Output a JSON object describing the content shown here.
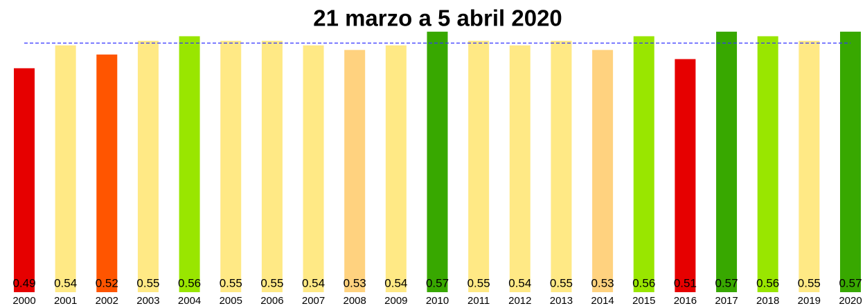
{
  "chart_data": {
    "type": "bar",
    "title": "21 marzo a 5 abril 2020",
    "categories": [
      "2000",
      "2001",
      "2002",
      "2003",
      "2004",
      "2005",
      "2006",
      "2007",
      "2008",
      "2009",
      "2010",
      "2011",
      "2012",
      "2013",
      "2014",
      "2015",
      "2016",
      "2017",
      "2018",
      "2019",
      "2020"
    ],
    "values": [
      0.49,
      0.54,
      0.52,
      0.55,
      0.56,
      0.55,
      0.55,
      0.54,
      0.53,
      0.54,
      0.57,
      0.55,
      0.54,
      0.55,
      0.53,
      0.56,
      0.51,
      0.57,
      0.56,
      0.55,
      0.57
    ],
    "colors": [
      "#e60000",
      "#ffe985",
      "#ff5500",
      "#ffe985",
      "#99e600",
      "#ffe985",
      "#ffe985",
      "#ffe985",
      "#ffd27f",
      "#ffe985",
      "#38a800",
      "#ffe985",
      "#ffe985",
      "#ffe985",
      "#ffd27f",
      "#99e600",
      "#e60000",
      "#38a800",
      "#99e600",
      "#ffe985",
      "#38a800"
    ],
    "reference_line": 0.545,
    "reference_color": "#3333ff",
    "ylim": [
      0,
      0.6
    ]
  }
}
